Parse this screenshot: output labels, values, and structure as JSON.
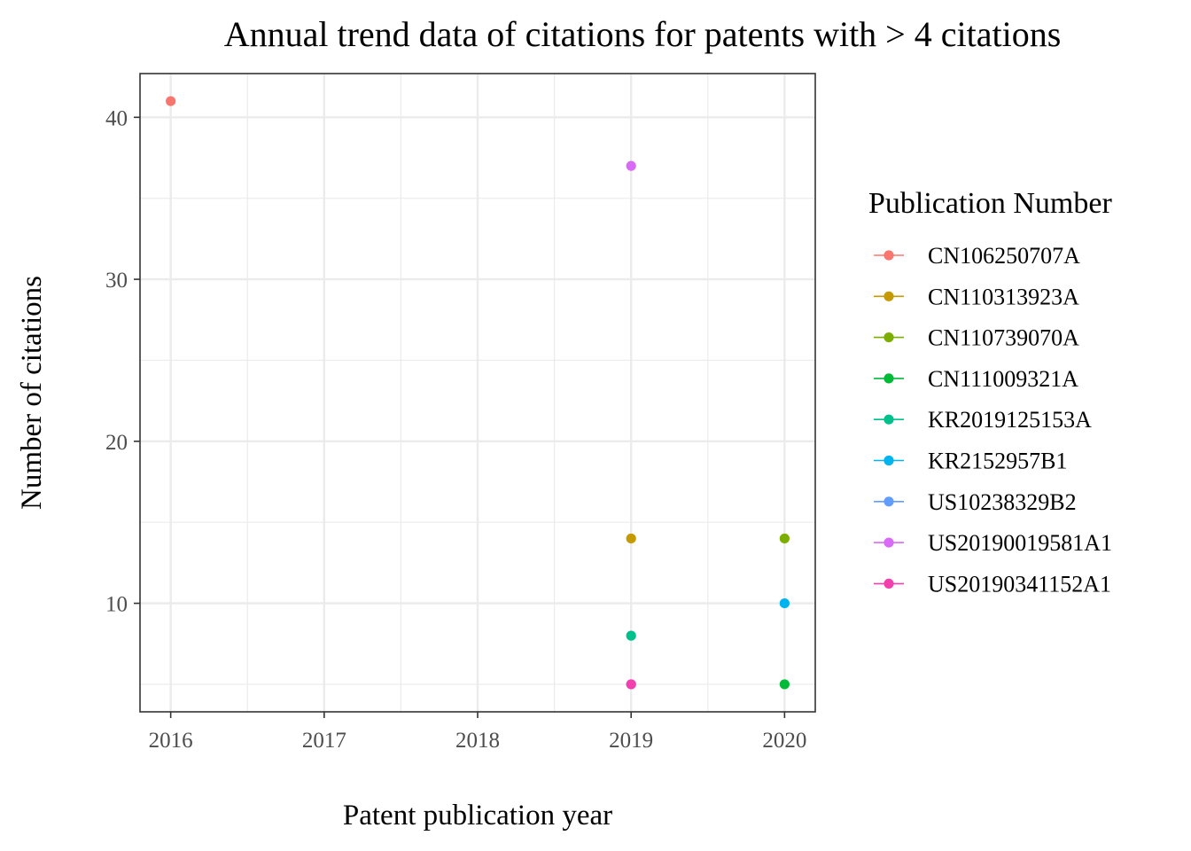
{
  "chart_data": {
    "type": "scatter",
    "title": "Annual trend data of citations for patents with > 4 citations",
    "xlabel": "Patent publication year",
    "ylabel": "Number of citations",
    "x_ticks": [
      "2016",
      "2017",
      "2018",
      "2019",
      "2020"
    ],
    "y_ticks": [
      "10",
      "20",
      "30",
      "40"
    ],
    "xlim": [
      2015.8,
      2020.2
    ],
    "ylim": [
      3.3,
      42.7
    ],
    "grid": true,
    "legend": {
      "title": "Publication Number",
      "placement": "right"
    },
    "series": [
      {
        "name": "CN106250707A",
        "color": "#F8766D",
        "points": [
          {
            "x": 2016,
            "y": 41
          }
        ]
      },
      {
        "name": "CN110313923A",
        "color": "#C49A00",
        "points": [
          {
            "x": 2019,
            "y": 14
          }
        ]
      },
      {
        "name": "CN110739070A",
        "color": "#7CAE00",
        "points": [
          {
            "x": 2020,
            "y": 14
          }
        ]
      },
      {
        "name": "CN111009321A",
        "color": "#00BA38",
        "points": [
          {
            "x": 2020,
            "y": 5
          }
        ]
      },
      {
        "name": "KR2019125153A",
        "color": "#00C08B",
        "points": [
          {
            "x": 2019,
            "y": 8
          }
        ]
      },
      {
        "name": "KR2152957B1",
        "color": "#00B4EF",
        "points": [
          {
            "x": 2020,
            "y": 10
          }
        ]
      },
      {
        "name": "US10238329B2",
        "color": "#619CFF",
        "points": [
          {
            "x": 2019,
            "y": 5
          }
        ]
      },
      {
        "name": "US20190019581A1",
        "color": "#D96AF6",
        "points": [
          {
            "x": 2019,
            "y": 37
          }
        ]
      },
      {
        "name": "US20190341152A1",
        "color": "#F43FAE",
        "points": [
          {
            "x": 2019,
            "y": 5
          }
        ]
      }
    ]
  }
}
